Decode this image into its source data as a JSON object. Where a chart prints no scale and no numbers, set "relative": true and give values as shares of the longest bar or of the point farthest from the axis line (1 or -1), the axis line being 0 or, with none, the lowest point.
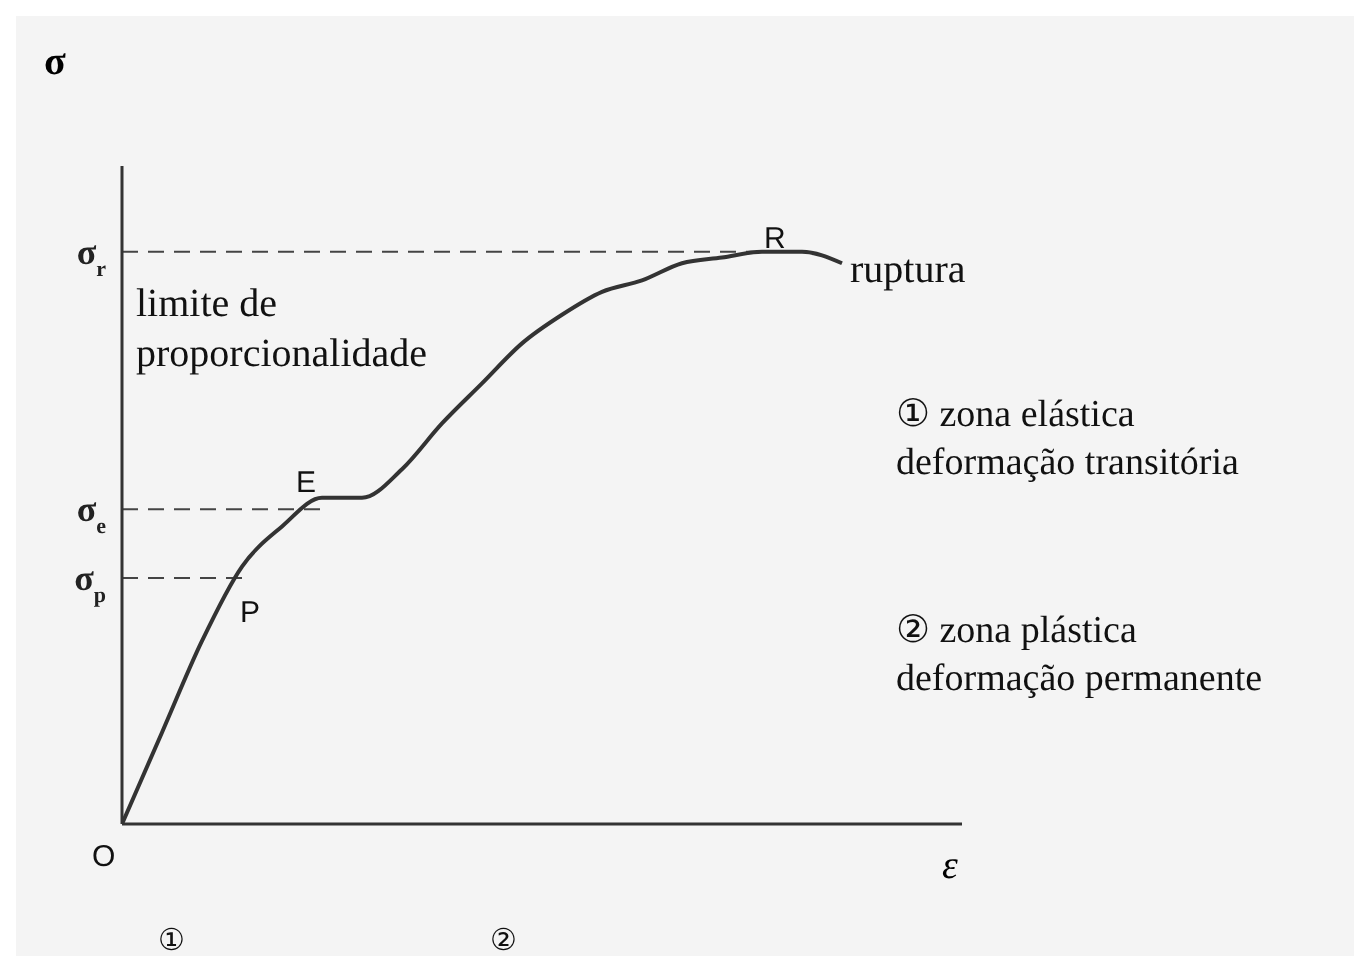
{
  "chart_data": {
    "type": "line",
    "relative": true,
    "xlabel": "ε",
    "ylabel": "σ",
    "categories": [
      null,
      null,
      null,
      null,
      null,
      null,
      null,
      null,
      null,
      null,
      null,
      null,
      null,
      null,
      null,
      null,
      null,
      null,
      null,
      null,
      null,
      null
    ],
    "series": [
      {
        "color": "#333333",
        "values": [
          0,
          0.16,
          0.32,
          0.45,
          0.52,
          0.57,
          0.57,
          0.62,
          0.7,
          0.77,
          0.84,
          0.89,
          0.93,
          0.95,
          0.98,
          0.99,
          1,
          1,
          0.98,
          null,
          null,
          null
        ]
      }
    ],
    "ref_lines": [
      {
        "axis": "y",
        "value": 1,
        "label": "σ$_{r}$",
        "line_style": "dashed"
      },
      {
        "axis": "y",
        "value": 0.55,
        "label": "σ$_{e}$",
        "line_style": "dashed"
      },
      {
        "axis": "y",
        "value": 0.43,
        "label": "σ$_{p}$",
        "line_style": "dashed"
      }
    ],
    "annotations": [
      "limite de proporcionalidade",
      "ruptura",
      "① zona elástica deformação transitória",
      "② zona plástica deformação permanente",
      "O",
      "P",
      "E",
      "R",
      "①",
      "②"
    ],
    "grid": false,
    "legend": false,
    "marker": "none",
    "line_style": "solid"
  }
}
